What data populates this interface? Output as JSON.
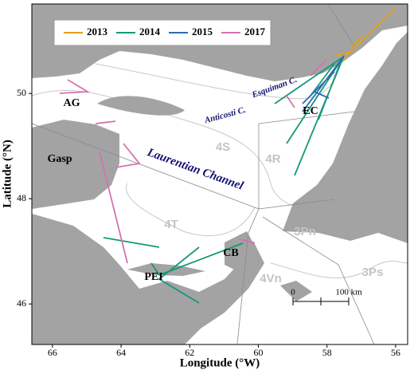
{
  "map": {
    "xlabel": "Longitude (°W)",
    "ylabel": "Latitude (°N)",
    "xlim": [
      66.6,
      55.65
    ],
    "ylim": [
      45.23,
      51.7
    ],
    "xticks": [
      66,
      64,
      62,
      60,
      58,
      56
    ],
    "yticks": [
      46,
      48,
      50
    ],
    "legend": [
      {
        "name": "2013",
        "color": "#e3a21a"
      },
      {
        "name": "2014",
        "color": "#16977a"
      },
      {
        "name": "2015",
        "color": "#2b6cb0"
      },
      {
        "name": "2017",
        "color": "#d273b4"
      }
    ],
    "labels": [
      "AG",
      "Gasp",
      "Anticosti C.",
      "4S",
      "Laurentian Channel",
      "4R",
      "Esquiman C.",
      "EC",
      "4T",
      "3Pn",
      "CB",
      "PEI",
      "4Vn",
      "3Ps"
    ],
    "scalebar": [
      "0",
      "100 km"
    ]
  }
}
